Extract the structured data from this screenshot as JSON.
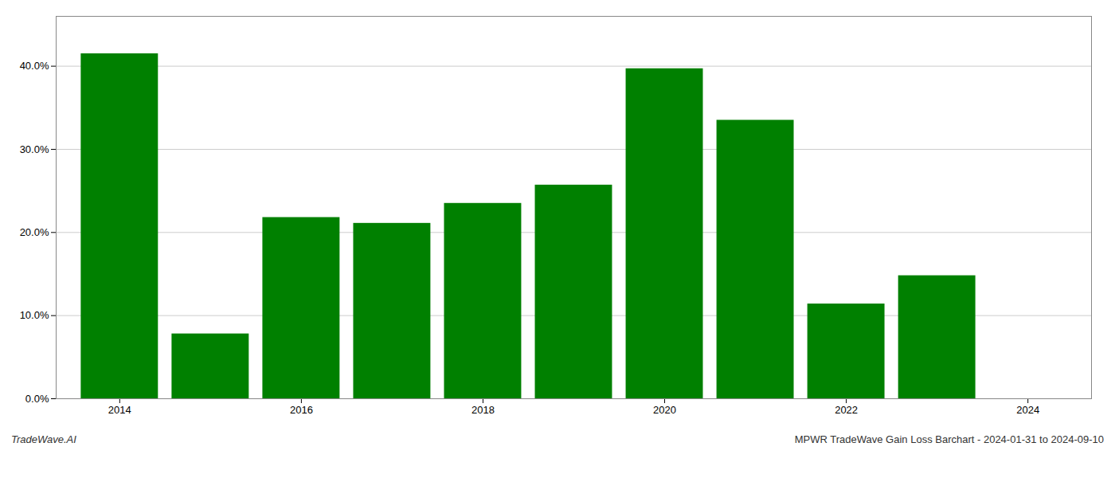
{
  "chart_data": {
    "type": "bar",
    "title": "MPWR TradeWave Gain Loss Barchart - 2024-01-31 to 2024-09-10",
    "annotations": [
      "TradeWave.AI"
    ],
    "x": [
      2014,
      2015,
      2016,
      2017,
      2018,
      2019,
      2020,
      2021,
      2022,
      2023,
      2024
    ],
    "values": [
      0.415,
      0.078,
      0.218,
      0.211,
      0.235,
      0.257,
      0.397,
      0.335,
      0.114,
      0.148,
      null
    ],
    "color": "#008000",
    "xlim": [
      2013.3,
      2024.7
    ],
    "xticks": [
      2014,
      2016,
      2018,
      2020,
      2022,
      2024
    ],
    "ylim": [
      0,
      0.46
    ],
    "yticks": [
      {
        "value": 0.0,
        "label": "0.0%"
      },
      {
        "value": 0.1,
        "label": "10.0%"
      },
      {
        "value": 0.2,
        "label": "20.0%"
      },
      {
        "value": 0.3,
        "label": "30.0%"
      },
      {
        "value": 0.4,
        "label": "40.0%"
      }
    ],
    "grid": true
  }
}
